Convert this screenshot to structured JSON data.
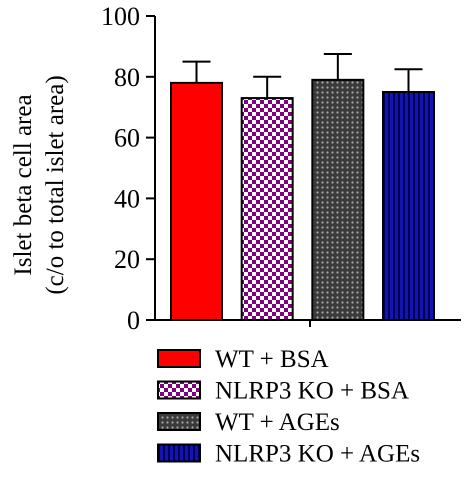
{
  "chart_data": {
    "type": "bar",
    "ylabel_line1": "Islet beta cell area",
    "ylabel_line2": "(c/o to total islet area)",
    "ylim": [
      0,
      100
    ],
    "yticks": [
      0,
      20,
      40,
      60,
      80,
      100
    ],
    "grid": false,
    "legend_position": "bottom",
    "series": [
      {
        "name": "WT + BSA",
        "value": 78,
        "error": 7,
        "color": "#ff0000",
        "pattern": "solid"
      },
      {
        "name": "NLRP3 KO + BSA",
        "value": 73,
        "error": 7,
        "color": "#800080",
        "pattern": "checker"
      },
      {
        "name": "WT + AGEs",
        "value": 79,
        "error": 8.5,
        "color": "#404040",
        "pattern": "dots"
      },
      {
        "name": "NLRP3 KO + AGEs",
        "value": 75,
        "error": 7.5,
        "color": "#1010a0",
        "pattern": "vstripes"
      }
    ]
  }
}
